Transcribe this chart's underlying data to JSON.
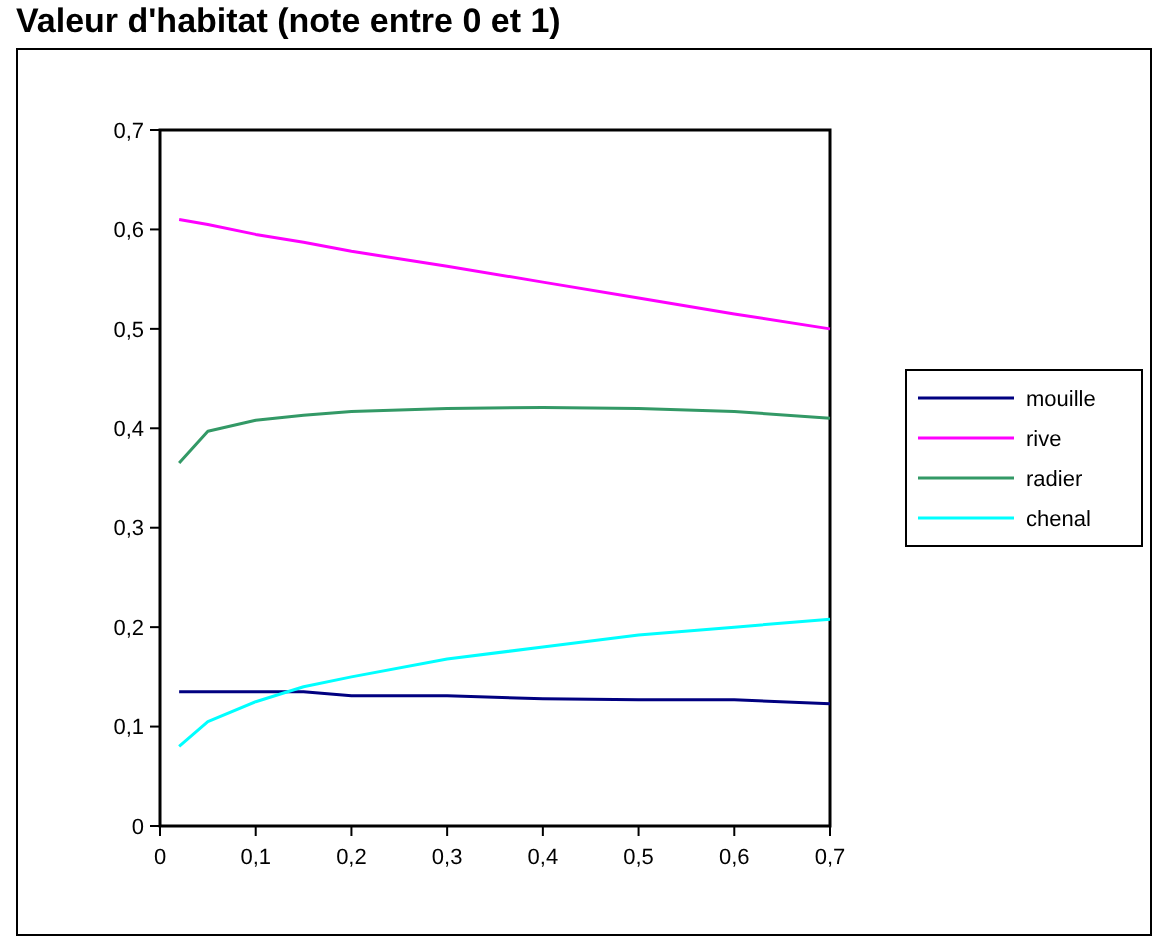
{
  "chart_data": {
    "type": "line",
    "title": "Valeur d'habitat (note entre 0 et 1)",
    "x": [
      0.02,
      0.05,
      0.1,
      0.15,
      0.2,
      0.3,
      0.4,
      0.5,
      0.6,
      0.7
    ],
    "series": [
      {
        "name": "mouille",
        "color": "#000080",
        "values": [
          0.135,
          0.135,
          0.135,
          0.135,
          0.131,
          0.131,
          0.128,
          0.127,
          0.127,
          0.123
        ]
      },
      {
        "name": "rive",
        "color": "#ff00ff",
        "values": [
          0.61,
          0.605,
          0.595,
          0.587,
          0.578,
          0.563,
          0.547,
          0.531,
          0.515,
          0.5
        ]
      },
      {
        "name": "radier",
        "color": "#339966",
        "values": [
          0.365,
          0.397,
          0.408,
          0.413,
          0.417,
          0.42,
          0.421,
          0.42,
          0.417,
          0.41
        ]
      },
      {
        "name": "chenal",
        "color": "#00ffff",
        "values": [
          0.08,
          0.105,
          0.125,
          0.14,
          0.15,
          0.168,
          0.18,
          0.192,
          0.2,
          0.208
        ]
      }
    ],
    "xlim": [
      0,
      0.7
    ],
    "xticks": [
      {
        "value": 0,
        "label": "0"
      },
      {
        "value": 0.1,
        "label": "0,1"
      },
      {
        "value": 0.2,
        "label": "0,2"
      },
      {
        "value": 0.3,
        "label": "0,3"
      },
      {
        "value": 0.4,
        "label": "0,4"
      },
      {
        "value": 0.5,
        "label": "0,5"
      },
      {
        "value": 0.6,
        "label": "0,6"
      },
      {
        "value": 0.7,
        "label": "0,7"
      }
    ],
    "ylim": [
      0,
      0.7
    ],
    "yticks": [
      {
        "value": 0,
        "label": "0"
      },
      {
        "value": 0.1,
        "label": "0,1"
      },
      {
        "value": 0.2,
        "label": "0,2"
      },
      {
        "value": 0.3,
        "label": "0,3"
      },
      {
        "value": 0.4,
        "label": "0,4"
      },
      {
        "value": 0.5,
        "label": "0,5"
      },
      {
        "value": 0.6,
        "label": "0,6"
      },
      {
        "value": 0.7,
        "label": "0,7"
      }
    ],
    "grid": false,
    "legend": "right",
    "marker": "none",
    "line_style": "solid"
  }
}
